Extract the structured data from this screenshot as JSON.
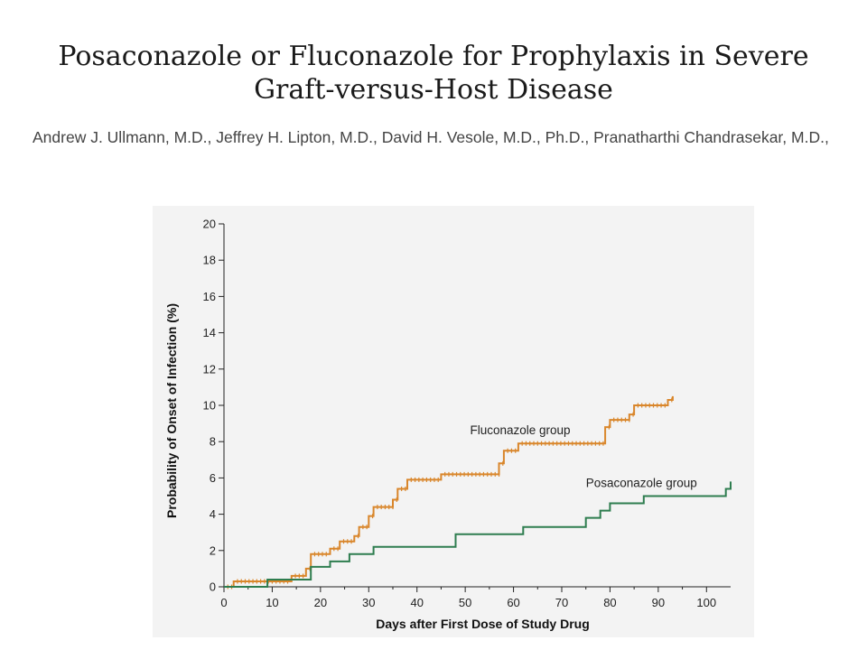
{
  "header": {
    "title_line1": "Posaconazole or Fluconazole for Prophylaxis in Severe",
    "title_line2": "Graft-versus-Host Disease",
    "authors": "Andrew J. Ullmann, M.D., Jeffrey H. Lipton, M.D., David H. Vesole, M.D., Ph.D., Pranatharthi Chandrasekar, M.D.,"
  },
  "chart_data": {
    "type": "line",
    "title": "",
    "xlabel": "Days after First Dose of Study Drug",
    "ylabel": "Probability of Onset of Infection (%)",
    "xlim": [
      0,
      105
    ],
    "ylim": [
      0,
      20
    ],
    "xticks": [
      0,
      10,
      20,
      30,
      40,
      50,
      60,
      70,
      80,
      90,
      100
    ],
    "yticks": [
      0,
      2,
      4,
      6,
      8,
      10,
      12,
      14,
      16,
      18,
      20
    ],
    "step": true,
    "grid": false,
    "series": [
      {
        "name": "Fluconazole group",
        "color": "#d9862b",
        "points": [
          [
            0,
            0
          ],
          [
            2,
            0.3
          ],
          [
            14,
            0.6
          ],
          [
            17,
            1.0
          ],
          [
            18,
            1.8
          ],
          [
            22,
            2.1
          ],
          [
            24,
            2.5
          ],
          [
            27,
            2.8
          ],
          [
            28,
            3.3
          ],
          [
            30,
            3.9
          ],
          [
            31,
            4.4
          ],
          [
            35,
            4.8
          ],
          [
            36,
            5.4
          ],
          [
            38,
            5.9
          ],
          [
            45,
            6.2
          ],
          [
            57,
            6.8
          ],
          [
            58,
            7.5
          ],
          [
            61,
            7.9
          ],
          [
            79,
            8.8
          ],
          [
            80,
            9.2
          ],
          [
            84,
            9.5
          ],
          [
            85,
            10.0
          ],
          [
            92,
            10.3
          ],
          [
            93,
            10.5
          ]
        ]
      },
      {
        "name": "Posaconazole group",
        "color": "#2e7d4f",
        "points": [
          [
            0,
            0
          ],
          [
            9,
            0.4
          ],
          [
            18,
            0.7
          ],
          [
            18,
            1.1
          ],
          [
            22,
            1.4
          ],
          [
            26,
            1.8
          ],
          [
            31,
            2.2
          ],
          [
            48,
            2.9
          ],
          [
            62,
            3.3
          ],
          [
            75,
            3.8
          ],
          [
            78,
            4.2
          ],
          [
            80,
            4.6
          ],
          [
            87,
            5.0
          ],
          [
            104,
            5.4
          ],
          [
            105,
            5.8
          ]
        ]
      }
    ]
  }
}
